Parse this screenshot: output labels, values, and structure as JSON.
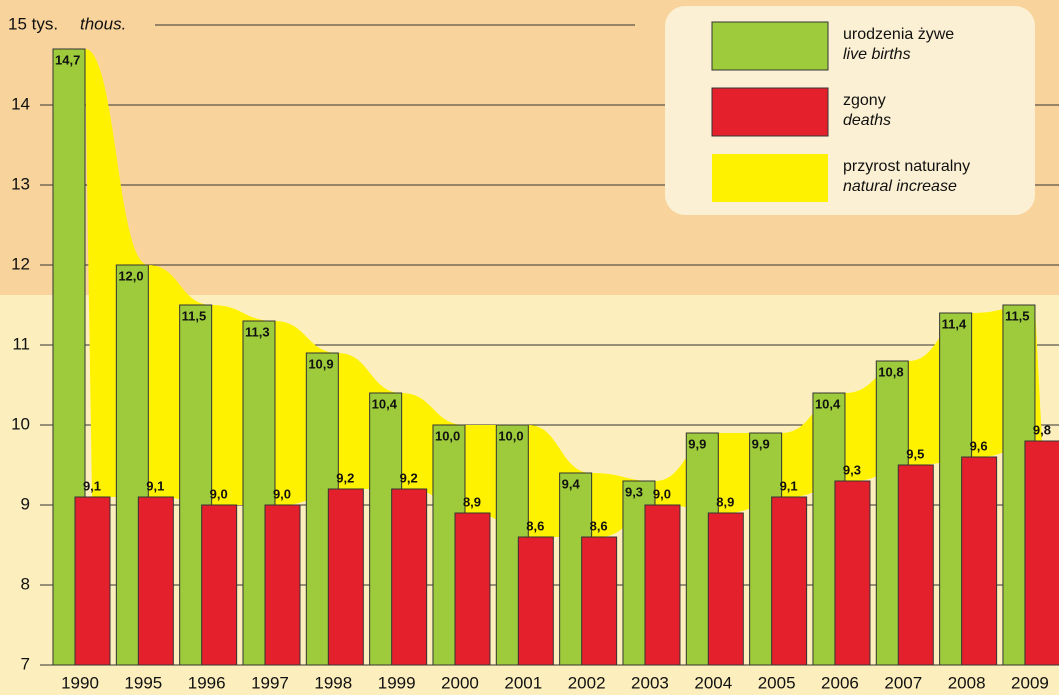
{
  "chart_data": {
    "type": "bar",
    "y_unit": "thous.",
    "categories": [
      "1990",
      "1995",
      "1996",
      "1997",
      "1998",
      "1999",
      "2000",
      "2001",
      "2002",
      "2003",
      "2004",
      "2005",
      "2006",
      "2007",
      "2008",
      "2009"
    ],
    "series": [
      {
        "name": "urodzenia żywe",
        "name_en": "live births",
        "color": "#9dcb3b",
        "values": [
          14.7,
          12.0,
          11.5,
          11.3,
          10.9,
          10.4,
          10.0,
          10.0,
          9.4,
          9.3,
          9.9,
          9.9,
          10.4,
          10.8,
          11.4,
          11.5
        ],
        "value_labels": [
          "14,7",
          "12,0",
          "11,5",
          "11,3",
          "10,9",
          "10,4",
          "10,0",
          "10,0",
          "9,4",
          "9,3",
          "9,9",
          "9,9",
          "10,4",
          "10,8",
          "11,4",
          "11,5"
        ]
      },
      {
        "name": "zgony",
        "name_en": "deaths",
        "color": "#e4202c",
        "values": [
          9.1,
          9.1,
          9.0,
          9.0,
          9.2,
          9.2,
          8.9,
          8.6,
          8.6,
          9.0,
          8.9,
          9.1,
          9.3,
          9.5,
          9.6,
          9.8
        ],
        "value_labels": [
          "9,1",
          "9,1",
          "9,0",
          "9,0",
          "9,2",
          "9,2",
          "8,9",
          "8,6",
          "8,6",
          "9,0",
          "8,9",
          "9,1",
          "9,3",
          "9,5",
          "9,6",
          "9,8"
        ]
      }
    ],
    "area": {
      "name": "przyrost naturalny",
      "name_en": "natural increase",
      "color": "#fff200"
    },
    "ylim": [
      7,
      15
    ],
    "yticks": [
      7,
      8,
      9,
      10,
      11,
      12,
      13,
      14,
      {
        "value": 15,
        "label": "15 tys."
      }
    ],
    "grid": true
  }
}
